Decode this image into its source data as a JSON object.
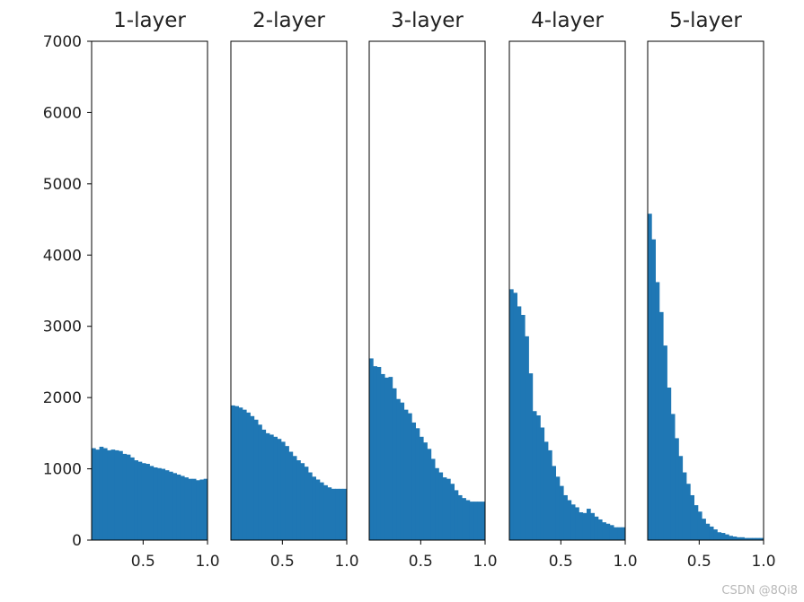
{
  "chart_data": [
    {
      "type": "histogram",
      "title": "1-layer",
      "xlim": [
        0.1,
        1.0
      ],
      "ylim": [
        0,
        7000
      ],
      "x_ticks": [
        "0.5",
        "1.0"
      ],
      "y_ticks": [
        "0",
        "1000",
        "2000",
        "3000",
        "4000",
        "5000",
        "6000",
        "7000"
      ],
      "bins": [
        0.1,
        0.13,
        0.16,
        0.19,
        0.22,
        0.25,
        0.28,
        0.31,
        0.34,
        0.37,
        0.4,
        0.43,
        0.46,
        0.49,
        0.52,
        0.55,
        0.58,
        0.61,
        0.64,
        0.67,
        0.7,
        0.73,
        0.76,
        0.79,
        0.82,
        0.85,
        0.88,
        0.91,
        0.94,
        0.97,
        1.0
      ],
      "values": [
        1290,
        1270,
        1310,
        1290,
        1260,
        1270,
        1260,
        1250,
        1210,
        1200,
        1160,
        1120,
        1100,
        1080,
        1070,
        1040,
        1020,
        1010,
        1000,
        980,
        960,
        940,
        920,
        900,
        880,
        860,
        860,
        840,
        850,
        860
      ]
    },
    {
      "type": "histogram",
      "title": "2-layer",
      "xlim": [
        0.1,
        1.0
      ],
      "ylim": [
        0,
        7000
      ],
      "x_ticks": [
        "0.5",
        "1.0"
      ],
      "bins": [
        0.1,
        0.13,
        0.16,
        0.19,
        0.22,
        0.25,
        0.28,
        0.31,
        0.34,
        0.37,
        0.4,
        0.43,
        0.46,
        0.49,
        0.52,
        0.55,
        0.58,
        0.61,
        0.64,
        0.67,
        0.7,
        0.73,
        0.76,
        0.79,
        0.82,
        0.85,
        0.88,
        0.91,
        0.94,
        0.97,
        1.0
      ],
      "values": [
        1890,
        1880,
        1860,
        1830,
        1790,
        1740,
        1690,
        1620,
        1550,
        1500,
        1480,
        1450,
        1420,
        1380,
        1320,
        1240,
        1180,
        1120,
        1080,
        1030,
        950,
        890,
        850,
        810,
        770,
        740,
        720,
        720,
        720,
        720
      ]
    },
    {
      "type": "histogram",
      "title": "3-layer",
      "xlim": [
        0.1,
        1.0
      ],
      "ylim": [
        0,
        7000
      ],
      "x_ticks": [
        "0.5",
        "1.0"
      ],
      "bins": [
        0.1,
        0.13,
        0.16,
        0.19,
        0.22,
        0.25,
        0.28,
        0.31,
        0.34,
        0.37,
        0.4,
        0.43,
        0.46,
        0.49,
        0.52,
        0.55,
        0.58,
        0.61,
        0.64,
        0.67,
        0.7,
        0.73,
        0.76,
        0.79,
        0.82,
        0.85,
        0.88,
        0.91,
        0.94,
        0.97,
        1.0
      ],
      "values": [
        2550,
        2440,
        2430,
        2330,
        2280,
        2290,
        2130,
        1980,
        1930,
        1830,
        1780,
        1650,
        1570,
        1450,
        1370,
        1280,
        1140,
        1010,
        950,
        880,
        860,
        790,
        700,
        630,
        590,
        560,
        540,
        540,
        540,
        540
      ]
    },
    {
      "type": "histogram",
      "title": "4-layer",
      "xlim": [
        0.1,
        1.0
      ],
      "ylim": [
        0,
        7000
      ],
      "x_ticks": [
        "0.5",
        "1.0"
      ],
      "bins": [
        0.1,
        0.13,
        0.16,
        0.19,
        0.22,
        0.25,
        0.28,
        0.31,
        0.34,
        0.37,
        0.4,
        0.43,
        0.46,
        0.49,
        0.52,
        0.55,
        0.58,
        0.61,
        0.64,
        0.67,
        0.7,
        0.73,
        0.76,
        0.79,
        0.82,
        0.85,
        0.88,
        0.91,
        0.94,
        0.97,
        1.0
      ],
      "values": [
        3520,
        3470,
        3280,
        3160,
        2860,
        2340,
        1810,
        1750,
        1580,
        1380,
        1260,
        1040,
        890,
        760,
        630,
        560,
        500,
        460,
        390,
        380,
        440,
        380,
        330,
        290,
        250,
        230,
        210,
        180,
        180,
        180
      ]
    },
    {
      "type": "histogram",
      "title": "5-layer",
      "xlim": [
        0.1,
        1.0
      ],
      "ylim": [
        0,
        7000
      ],
      "x_ticks": [
        "0.5",
        "1.0"
      ],
      "bins": [
        0.1,
        0.13,
        0.16,
        0.19,
        0.22,
        0.25,
        0.28,
        0.31,
        0.34,
        0.37,
        0.4,
        0.43,
        0.46,
        0.49,
        0.52,
        0.55,
        0.58,
        0.61,
        0.64,
        0.67,
        0.7,
        0.73,
        0.76,
        0.79,
        0.82,
        0.85,
        0.88,
        0.91,
        0.94,
        0.97,
        1.0
      ],
      "values": [
        4580,
        4220,
        3620,
        3200,
        2730,
        2140,
        1770,
        1430,
        1180,
        950,
        790,
        630,
        490,
        400,
        300,
        230,
        190,
        150,
        110,
        100,
        80,
        60,
        50,
        40,
        40,
        30,
        30,
        30,
        30,
        30
      ]
    }
  ],
  "colors": {
    "bar": "#1f77b4",
    "axis": "#000000"
  },
  "watermark": "CSDN @8Qi8"
}
